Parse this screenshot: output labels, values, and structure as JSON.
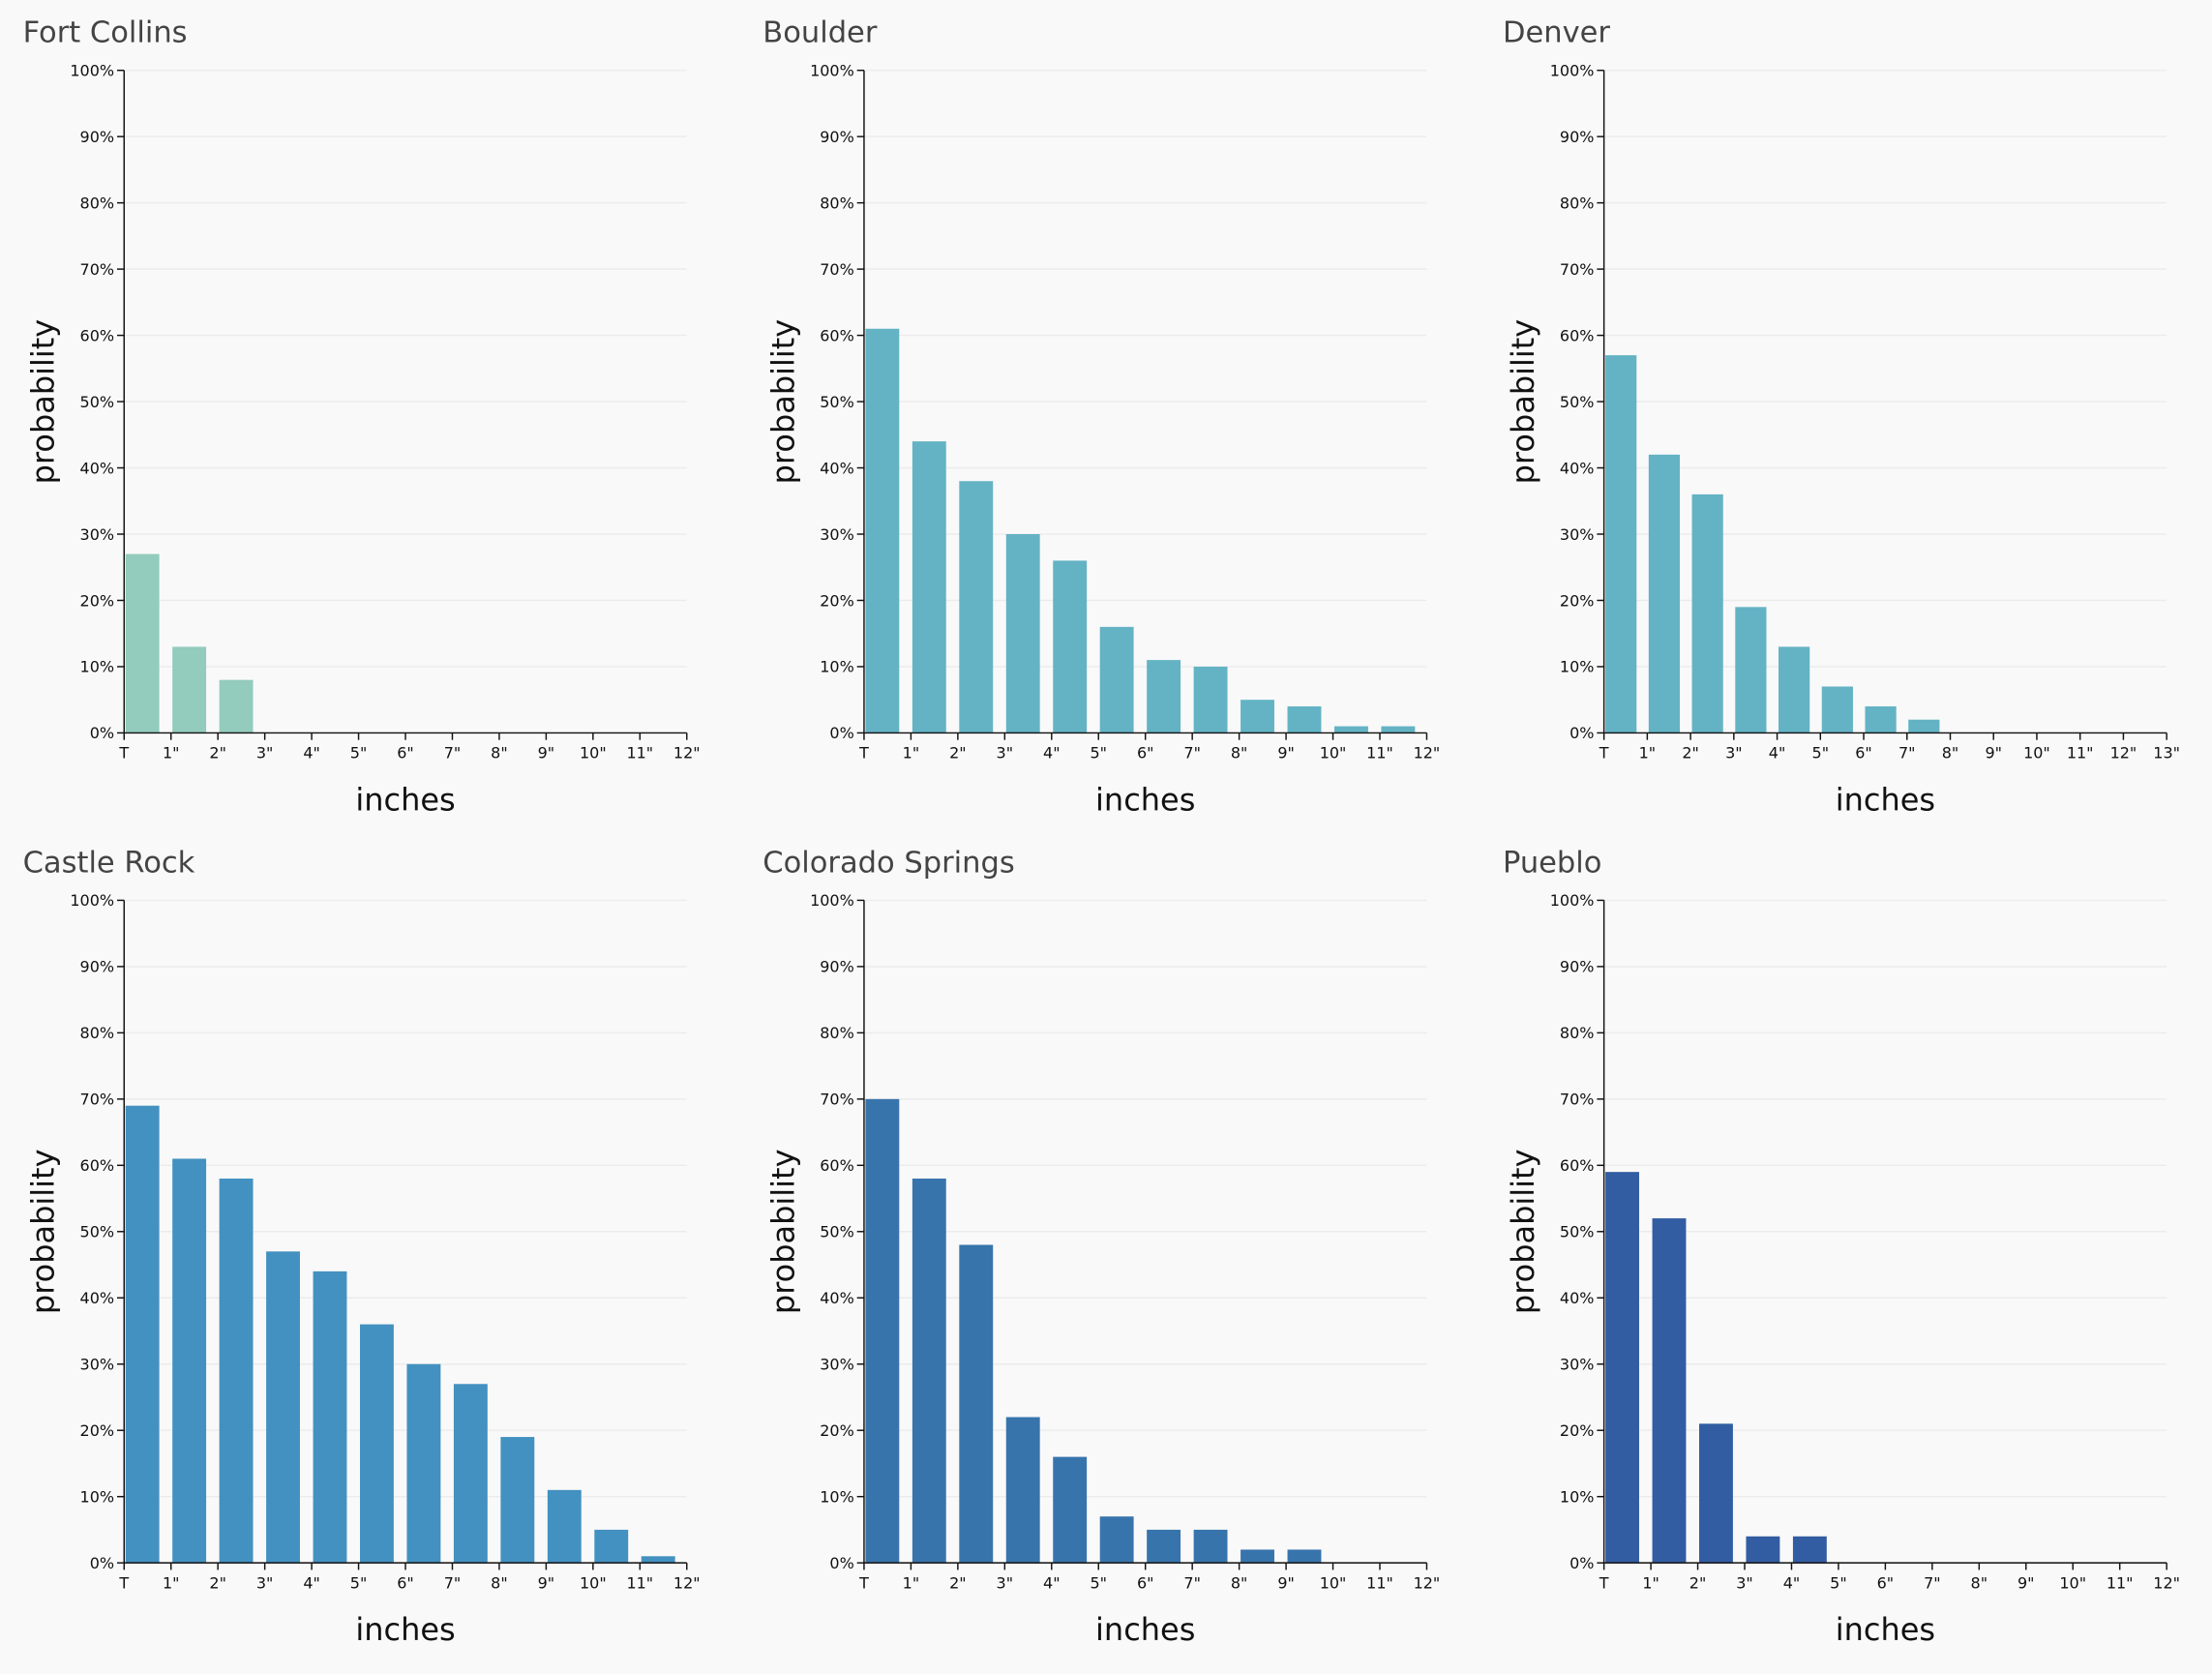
{
  "chart_data": [
    {
      "type": "bar",
      "title": "Fort Collins",
      "xlabel": "inches",
      "ylabel": "probability",
      "color": "#93cbbd",
      "xticks": [
        "T",
        "1\"",
        "2\"",
        "3\"",
        "4\"",
        "5\"",
        "6\"",
        "7\"",
        "8\"",
        "9\"",
        "10\"",
        "11\"",
        "12\""
      ],
      "values": [
        27,
        13,
        8
      ],
      "ylim": [
        0,
        100
      ],
      "grid": true,
      "yticks": [
        {
          "value": 0,
          "label": "0%"
        },
        {
          "value": 10,
          "label": "10%"
        },
        {
          "value": 20,
          "label": "20%"
        },
        {
          "value": 30,
          "label": "30%"
        },
        {
          "value": 40,
          "label": "40%"
        },
        {
          "value": 50,
          "label": "50%"
        },
        {
          "value": 60,
          "label": "60%"
        },
        {
          "value": 70,
          "label": "70%"
        },
        {
          "value": 80,
          "label": "80%"
        },
        {
          "value": 90,
          "label": "90%"
        },
        {
          "value": 100,
          "label": "100%"
        }
      ]
    },
    {
      "type": "bar",
      "title": "Boulder",
      "xlabel": "inches",
      "ylabel": "probability",
      "color": "#63b3c4",
      "xticks": [
        "T",
        "1\"",
        "2\"",
        "3\"",
        "4\"",
        "5\"",
        "6\"",
        "7\"",
        "8\"",
        "9\"",
        "10\"",
        "11\"",
        "12\""
      ],
      "values": [
        61,
        44,
        38,
        30,
        26,
        16,
        11,
        10,
        5,
        4,
        1,
        1
      ],
      "ylim": [
        0,
        100
      ],
      "grid": true,
      "yticks": [
        {
          "value": 0,
          "label": "0%"
        },
        {
          "value": 10,
          "label": "10%"
        },
        {
          "value": 20,
          "label": "20%"
        },
        {
          "value": 30,
          "label": "30%"
        },
        {
          "value": 40,
          "label": "40%"
        },
        {
          "value": 50,
          "label": "50%"
        },
        {
          "value": 60,
          "label": "60%"
        },
        {
          "value": 70,
          "label": "70%"
        },
        {
          "value": 80,
          "label": "80%"
        },
        {
          "value": 90,
          "label": "90%"
        },
        {
          "value": 100,
          "label": "100%"
        }
      ]
    },
    {
      "type": "bar",
      "title": "Denver",
      "xlabel": "inches",
      "ylabel": "probability",
      "color": "#63b3c4",
      "xticks": [
        "T",
        "1\"",
        "2\"",
        "3\"",
        "4\"",
        "5\"",
        "6\"",
        "7\"",
        "8\"",
        "9\"",
        "10\"",
        "11\"",
        "12\"",
        "13\""
      ],
      "values": [
        57,
        42,
        36,
        19,
        13,
        7,
        4,
        2
      ],
      "ylim": [
        0,
        100
      ],
      "grid": true,
      "yticks": [
        {
          "value": 0,
          "label": "0%"
        },
        {
          "value": 10,
          "label": "10%"
        },
        {
          "value": 20,
          "label": "20%"
        },
        {
          "value": 30,
          "label": "30%"
        },
        {
          "value": 40,
          "label": "40%"
        },
        {
          "value": 50,
          "label": "50%"
        },
        {
          "value": 60,
          "label": "60%"
        },
        {
          "value": 70,
          "label": "70%"
        },
        {
          "value": 80,
          "label": "80%"
        },
        {
          "value": 90,
          "label": "90%"
        },
        {
          "value": 100,
          "label": "100%"
        }
      ]
    },
    {
      "type": "bar",
      "title": "Castle Rock",
      "xlabel": "inches",
      "ylabel": "probability",
      "color": "#4391c0",
      "xticks": [
        "T",
        "1\"",
        "2\"",
        "3\"",
        "4\"",
        "5\"",
        "6\"",
        "7\"",
        "8\"",
        "9\"",
        "10\"",
        "11\"",
        "12\""
      ],
      "values": [
        69,
        61,
        58,
        47,
        44,
        36,
        30,
        27,
        19,
        11,
        5,
        1
      ],
      "ylim": [
        0,
        100
      ],
      "grid": true,
      "yticks": [
        {
          "value": 0,
          "label": "0%"
        },
        {
          "value": 10,
          "label": "10%"
        },
        {
          "value": 20,
          "label": "20%"
        },
        {
          "value": 30,
          "label": "30%"
        },
        {
          "value": 40,
          "label": "40%"
        },
        {
          "value": 50,
          "label": "50%"
        },
        {
          "value": 60,
          "label": "60%"
        },
        {
          "value": 70,
          "label": "70%"
        },
        {
          "value": 80,
          "label": "80%"
        },
        {
          "value": 90,
          "label": "90%"
        },
        {
          "value": 100,
          "label": "100%"
        }
      ]
    },
    {
      "type": "bar",
      "title": "Colorado Springs",
      "xlabel": "inches",
      "ylabel": "probability",
      "color": "#3874ac",
      "xticks": [
        "T",
        "1\"",
        "2\"",
        "3\"",
        "4\"",
        "5\"",
        "6\"",
        "7\"",
        "8\"",
        "9\"",
        "10\"",
        "11\"",
        "12\""
      ],
      "values": [
        70,
        58,
        48,
        22,
        16,
        7,
        5,
        5,
        2,
        2
      ],
      "ylim": [
        0,
        100
      ],
      "grid": true,
      "yticks": [
        {
          "value": 0,
          "label": "0%"
        },
        {
          "value": 10,
          "label": "10%"
        },
        {
          "value": 20,
          "label": "20%"
        },
        {
          "value": 30,
          "label": "30%"
        },
        {
          "value": 40,
          "label": "40%"
        },
        {
          "value": 50,
          "label": "50%"
        },
        {
          "value": 60,
          "label": "60%"
        },
        {
          "value": 70,
          "label": "70%"
        },
        {
          "value": 80,
          "label": "80%"
        },
        {
          "value": 90,
          "label": "90%"
        },
        {
          "value": 100,
          "label": "100%"
        }
      ]
    },
    {
      "type": "bar",
      "title": "Pueblo",
      "xlabel": "inches",
      "ylabel": "probability",
      "color": "#325da2",
      "xticks": [
        "T",
        "1\"",
        "2\"",
        "3\"",
        "4\"",
        "5\"",
        "6\"",
        "7\"",
        "8\"",
        "9\"",
        "10\"",
        "11\"",
        "12\""
      ],
      "values": [
        59,
        52,
        21,
        4,
        4
      ],
      "ylim": [
        0,
        100
      ],
      "grid": true,
      "yticks": [
        {
          "value": 0,
          "label": "0%"
        },
        {
          "value": 10,
          "label": "10%"
        },
        {
          "value": 20,
          "label": "20%"
        },
        {
          "value": 30,
          "label": "30%"
        },
        {
          "value": 40,
          "label": "40%"
        },
        {
          "value": 50,
          "label": "50%"
        },
        {
          "value": 60,
          "label": "60%"
        },
        {
          "value": 70,
          "label": "70%"
        },
        {
          "value": 80,
          "label": "80%"
        },
        {
          "value": 90,
          "label": "90%"
        },
        {
          "value": 100,
          "label": "100%"
        }
      ]
    }
  ]
}
